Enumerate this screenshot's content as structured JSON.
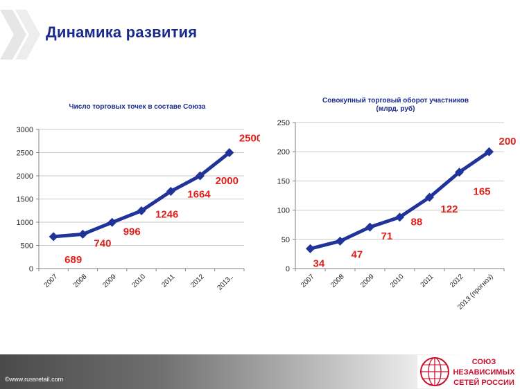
{
  "header": {
    "title": "Динамика развития"
  },
  "footer": {
    "copyright": "©www.russretail.com"
  },
  "logo": {
    "line1": "СОЮЗ",
    "line2": "НЕЗАВИСИМЫХ",
    "line3": "СЕТЕЙ РОССИИ",
    "color": "#c8102e"
  },
  "colors": {
    "title": "#1a2a8c",
    "series": "#1f3399",
    "data_label": "#e0201b",
    "grid": "#c8c8c8"
  },
  "chart_data": [
    {
      "type": "line",
      "title": "Число торговых точек в составе Союза",
      "categories": [
        "2007",
        "2008",
        "2009",
        "2010",
        "2011",
        "2012",
        "2013.."
      ],
      "values": [
        689,
        740,
        996,
        1246,
        1664,
        2000,
        2500
      ],
      "yticks": [
        0,
        500,
        1000,
        1500,
        2000,
        2500,
        3000
      ],
      "ylim": [
        0,
        3000
      ],
      "grid": true,
      "legend": "none"
    },
    {
      "type": "line",
      "title": [
        "Совокупный торговый оборот участников",
        "(млрд. руб)"
      ],
      "categories": [
        "2007",
        "2008",
        "2009",
        "2010",
        "2011",
        "2012",
        "2013 (прогноз)"
      ],
      "values": [
        34,
        47,
        71,
        88,
        122,
        165,
        200
      ],
      "yticks": [
        0,
        50,
        100,
        150,
        200,
        250
      ],
      "ylim": [
        0,
        250
      ],
      "grid": true,
      "legend": "none"
    }
  ]
}
